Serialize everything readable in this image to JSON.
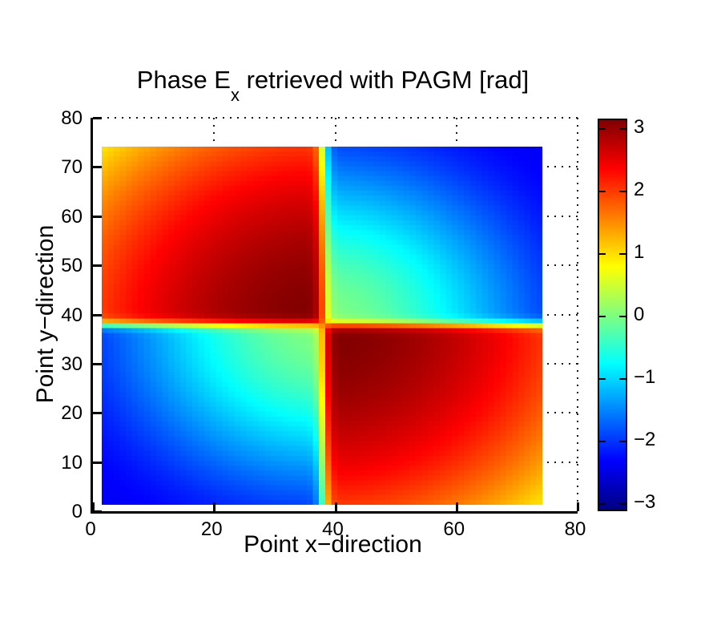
{
  "figure": {
    "background": "#ffffff",
    "title_pre": "Phase E",
    "title_sub": "x",
    "title_post": " retrieved with PAGM [rad]"
  },
  "chart_data": {
    "type": "heatmap",
    "title": "Phase E_x retrieved with PAGM [rad]",
    "xlabel": "Point x−direction",
    "ylabel": "Point y−direction",
    "xlim": [
      0,
      80
    ],
    "ylim": [
      0,
      80
    ],
    "xticks": [
      0,
      20,
      40,
      60,
      80
    ],
    "xtick_labels": [
      "0",
      "20",
      "40",
      "60",
      "80"
    ],
    "yticks": [
      0,
      10,
      20,
      30,
      40,
      50,
      60,
      70,
      80
    ],
    "ytick_labels": [
      "0",
      "10",
      "20",
      "30",
      "40",
      "50",
      "60",
      "70",
      "80"
    ],
    "grid": "dotted",
    "box": false,
    "colormap": "jet",
    "clim": [
      -3.14159265,
      3.14159265
    ],
    "colorbar": {
      "position": "right",
      "ticks": [
        3,
        2,
        1,
        0,
        -1,
        -2,
        -3
      ],
      "tick_labels": [
        "3",
        "2",
        "1",
        "0",
        "−1",
        "−2",
        "−3"
      ]
    },
    "heatmap": {
      "n_cells": 73,
      "data_extent": [
        1.4,
        74.1
      ],
      "center": [
        38,
        38
      ],
      "units": "rad",
      "phase_model": {
        "description": "Four-quadrant wrapped phase around center (38,38). In quadrants where sign(dx*dy)<0 (upper-left, lower-right): phi = pi - a*r^2, giving dark red (~+3.1 rad) next to the center decaying to yellow (~+0.9 rad) at the far corners. In quadrants where sign(dx*dy)>0 (upper-right, lower-left): phi = -A*smoothstep(r/rmax), giving light green (~-0.1 rad) next to the center falling to royal blue (~-2.4 rad) at the far corners. A one-cell tanh blend across the quadrant boundary lines produces the yellow/orange transition cross through the center.",
        "a": 0.00084,
        "A": 2.4,
        "rmax": 51,
        "blend_width_cells": 1.0
      },
      "key_values_rad": {
        "upper_left_near_center": 3.1,
        "upper_left_far_corner": 1.0,
        "upper_right_near_center": -0.2,
        "upper_right_far_corner": -2.4,
        "lower_left_near_center": -0.2,
        "lower_left_far_corner": -2.4,
        "lower_right_near_center": 3.1,
        "lower_right_far_corner": 1.0,
        "center_cross_cell": 1.2
      }
    }
  }
}
